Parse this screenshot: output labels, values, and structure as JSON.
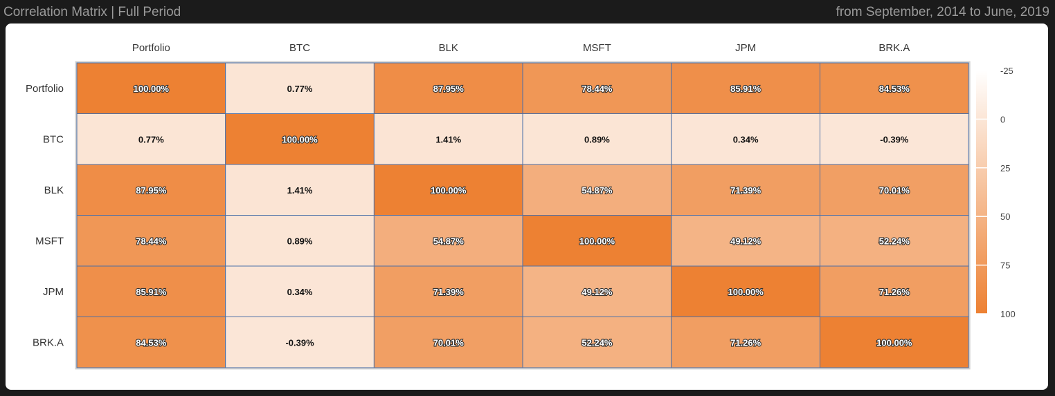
{
  "header": {
    "title": "Correlation Matrix | Full Period",
    "period": "from September, 2014 to June, 2019"
  },
  "chart_data": {
    "type": "heatmap",
    "x_categories": [
      "Portfolio",
      "BTC",
      "BLK",
      "MSFT",
      "JPM",
      "BRK.A"
    ],
    "y_categories": [
      "Portfolio",
      "BTC",
      "BLK",
      "MSFT",
      "JPM",
      "BRK.A"
    ],
    "values": [
      [
        100.0,
        0.77,
        87.95,
        78.44,
        85.91,
        84.53
      ],
      [
        0.77,
        100.0,
        1.41,
        0.89,
        0.34,
        -0.39
      ],
      [
        87.95,
        1.41,
        100.0,
        54.87,
        71.39,
        70.01
      ],
      [
        78.44,
        0.89,
        54.87,
        100.0,
        49.12,
        52.24
      ],
      [
        85.91,
        0.34,
        71.39,
        49.12,
        100.0,
        71.26
      ],
      [
        84.53,
        -0.39,
        70.01,
        52.24,
        71.26,
        100.0
      ]
    ],
    "value_labels": [
      [
        "100.00%",
        "0.77%",
        "87.95%",
        "78.44%",
        "85.91%",
        "84.53%"
      ],
      [
        "0.77%",
        "100.00%",
        "1.41%",
        "0.89%",
        "0.34%",
        "-0.39%"
      ],
      [
        "87.95%",
        "1.41%",
        "100.00%",
        "54.87%",
        "71.39%",
        "70.01%"
      ],
      [
        "78.44%",
        "0.89%",
        "54.87%",
        "100.00%",
        "49.12%",
        "52.24%"
      ],
      [
        "85.91%",
        "0.34%",
        "71.39%",
        "49.12%",
        "100.00%",
        "71.26%"
      ],
      [
        "84.53%",
        "-0.39%",
        "70.01%",
        "52.24%",
        "71.26%",
        "100.00%"
      ]
    ],
    "colorscale": {
      "ticks": [
        "-25",
        "0",
        "25",
        "50",
        "75",
        "100"
      ],
      "range": [
        -25,
        100
      ],
      "low_color": "#ffffff",
      "high_color": "#ed8133"
    },
    "legend_position": "right"
  }
}
